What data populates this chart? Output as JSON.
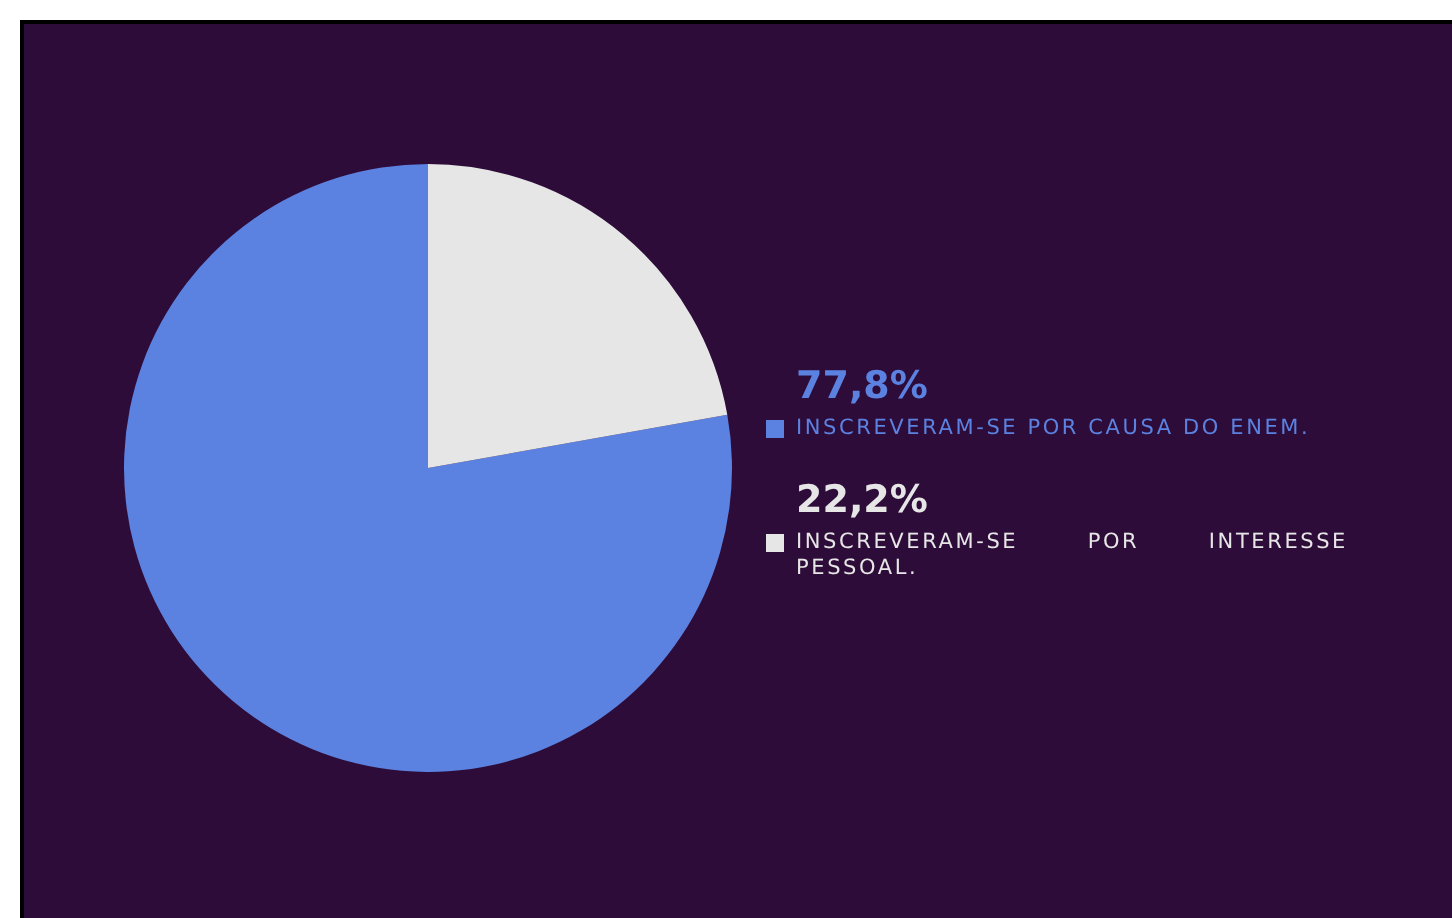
{
  "chart_data": {
    "type": "pie",
    "categories": [
      "INSCREVERAM-SE POR CAUSA DO ENEM.",
      "INSCREVERAM-SE POR INTERESSE PESSOAL."
    ],
    "values": [
      77.8,
      22.2
    ],
    "colors": [
      "#5b82e0",
      "#e6e6e6"
    ],
    "value_labels": [
      "77,8%",
      "22,2%"
    ],
    "legend": "right"
  }
}
